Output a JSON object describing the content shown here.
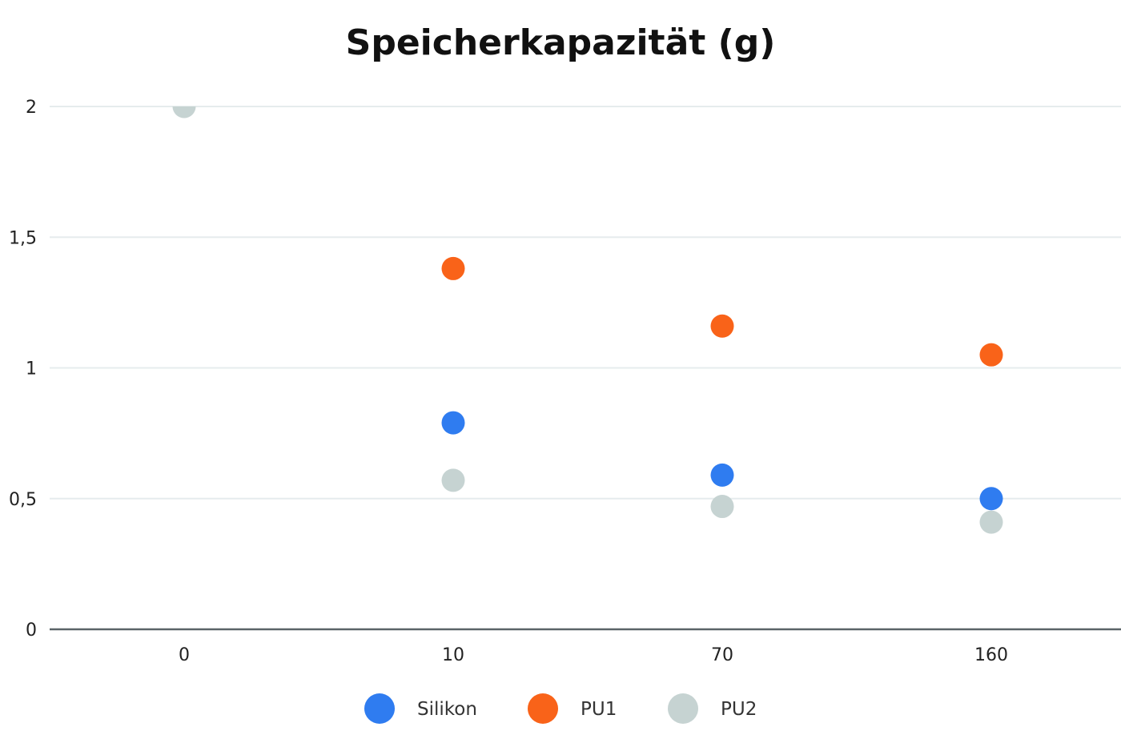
{
  "chart_data": {
    "type": "scatter",
    "title": "Speicherkapazität (g)",
    "xlabel": "",
    "ylabel": "",
    "categories": [
      "0",
      "10",
      "70",
      "160"
    ],
    "yticks": [
      "0",
      "0,5",
      "1",
      "1,5",
      "2"
    ],
    "ytick_values": [
      0,
      0.5,
      1,
      1.5,
      2
    ],
    "ylim": [
      0,
      2
    ],
    "grid": true,
    "legend_position": "bottom",
    "series": [
      {
        "name": "Silikon",
        "color": "#2f7cf0",
        "values": [
          null,
          0.79,
          0.59,
          0.5
        ]
      },
      {
        "name": "PU1",
        "color": "#f96319",
        "values": [
          null,
          1.38,
          1.16,
          1.05
        ]
      },
      {
        "name": "PU2",
        "color": "#c6d3d2",
        "values": [
          2.0,
          0.57,
          0.47,
          0.41
        ]
      }
    ]
  }
}
